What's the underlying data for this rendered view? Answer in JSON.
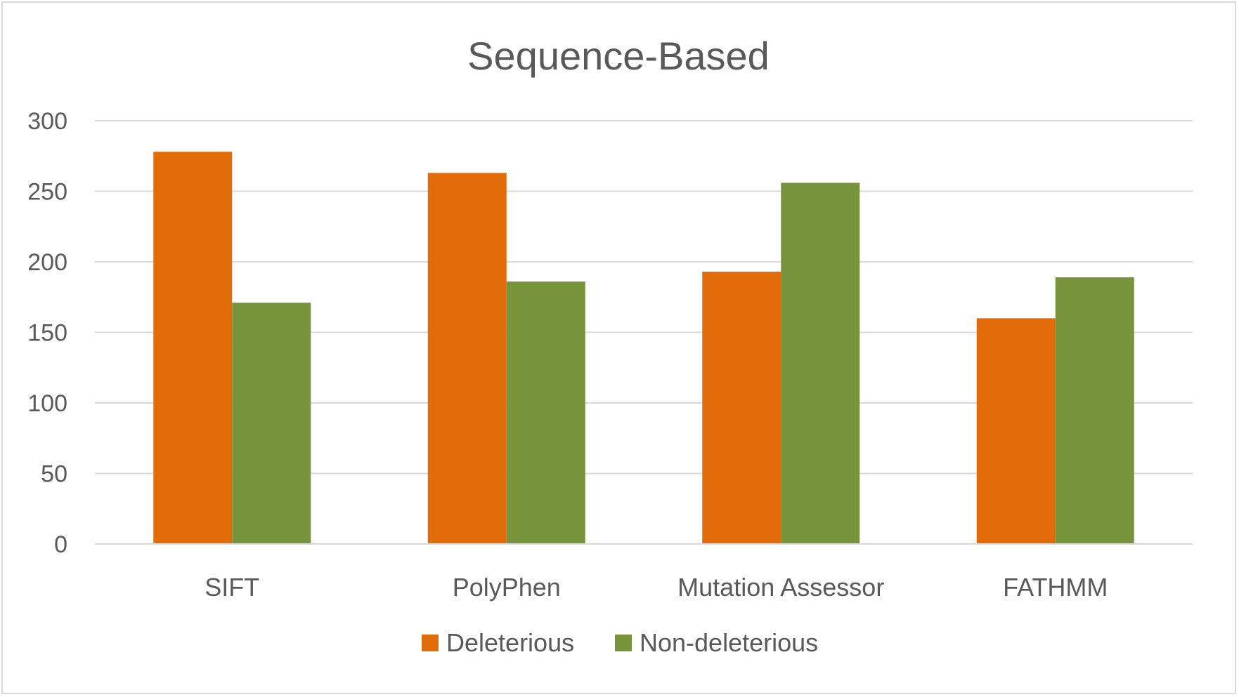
{
  "chart_data": {
    "type": "bar",
    "title": "Sequence-Based",
    "xlabel": "",
    "ylabel": "",
    "categories": [
      "SIFT",
      "PolyPhen",
      "Mutation Assessor",
      "FATHMM"
    ],
    "series": [
      {
        "name": "Deleterious",
        "color": "#e36c0a",
        "values": [
          278,
          263,
          193,
          160
        ]
      },
      {
        "name": "Non-deleterious",
        "color": "#77933c",
        "values": [
          171,
          186,
          256,
          189
        ]
      }
    ],
    "yticks": [
      "0",
      "50",
      "100",
      "150",
      "200",
      "250",
      "300"
    ],
    "ylim": [
      0,
      300
    ],
    "grid": true,
    "legend_position": "bottom"
  }
}
